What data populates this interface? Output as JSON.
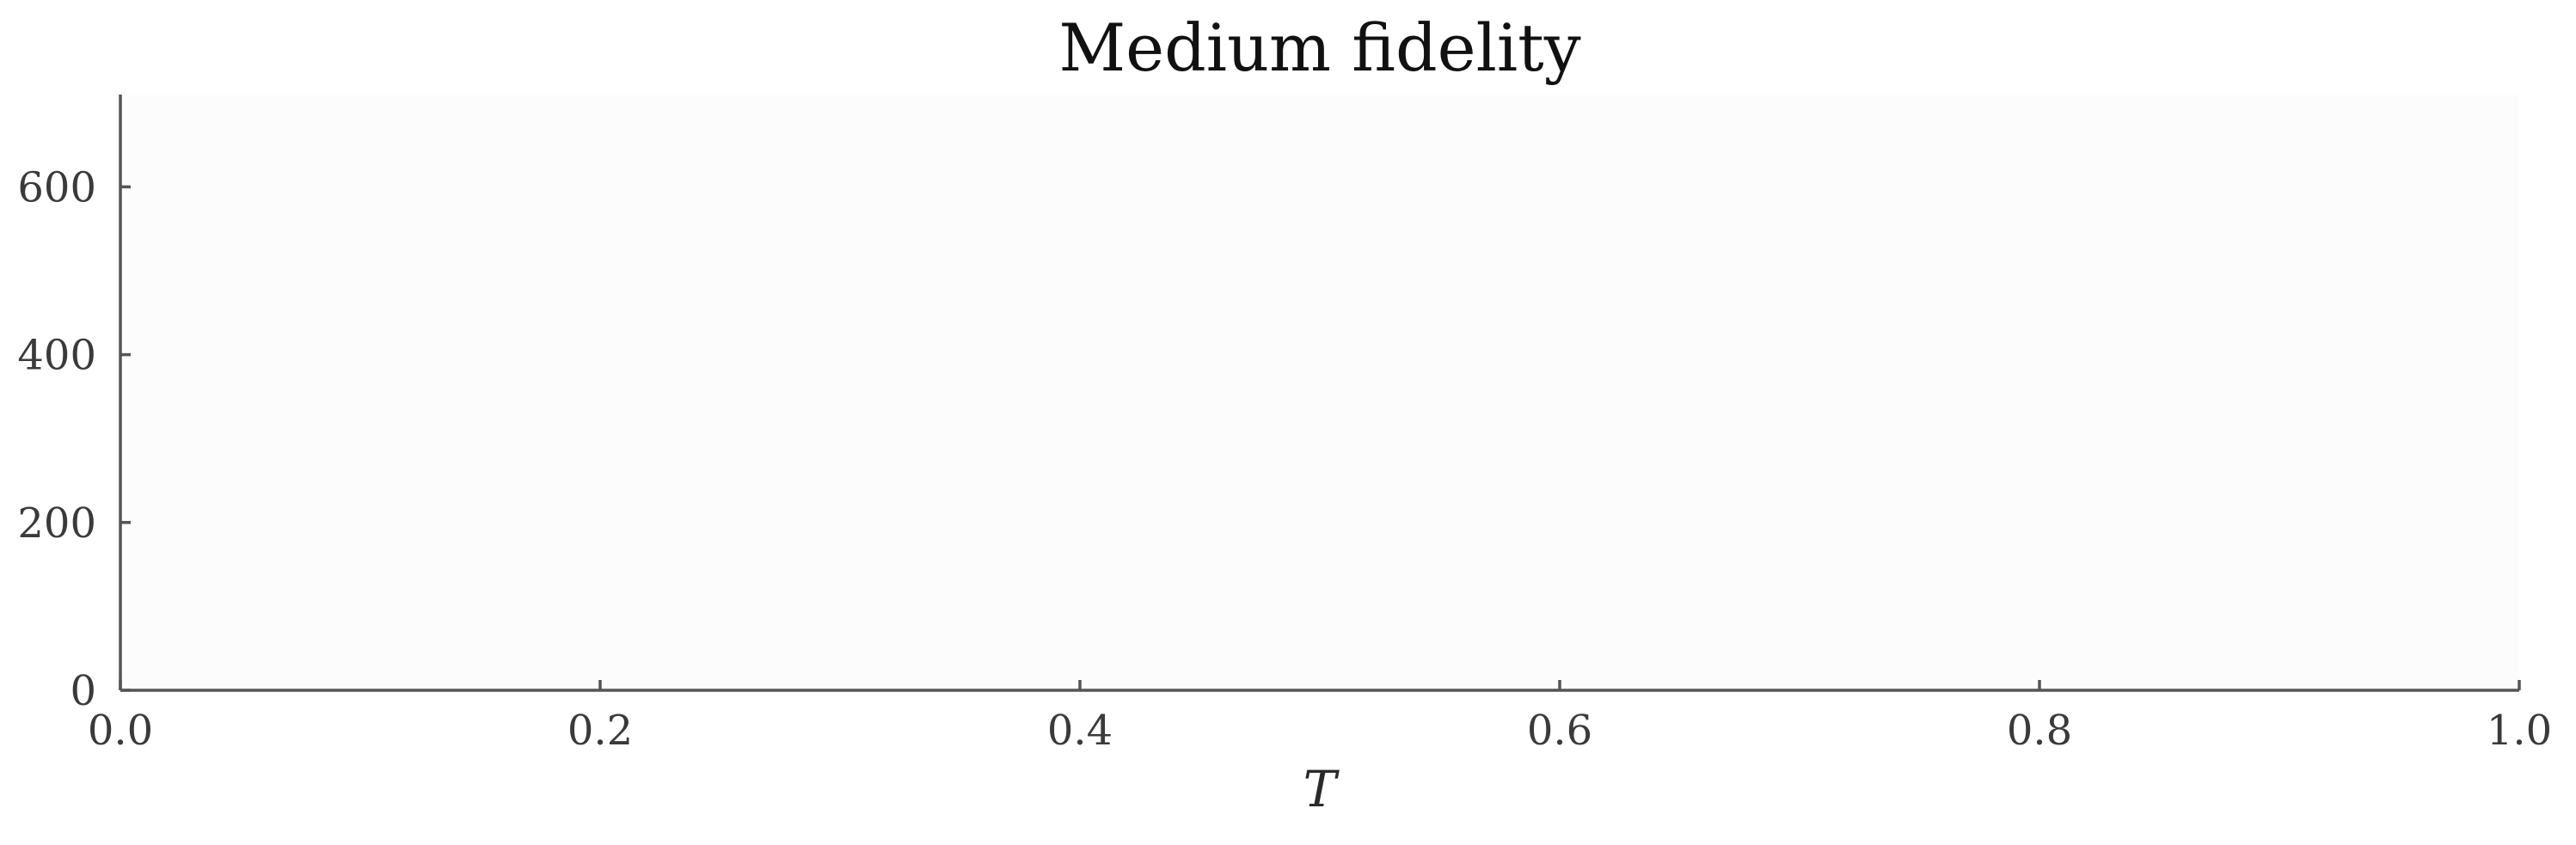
{
  "chart_data": {
    "type": "line",
    "title": "Medium fidelity",
    "xlabel": "T",
    "ylabel": "",
    "xlim": [
      0.0,
      1.0
    ],
    "ylim": [
      0,
      710
    ],
    "xticks": [
      0.0,
      0.2,
      0.4,
      0.6,
      0.8,
      1.0
    ],
    "xtick_labels": [
      "0.0",
      "0.2",
      "0.4",
      "0.6",
      "0.8",
      "1.0"
    ],
    "yticks": [
      0,
      200,
      400,
      600
    ],
    "ytick_labels": [
      "0",
      "200",
      "400",
      "600"
    ],
    "series": [],
    "grid": false,
    "legend": "none",
    "colors": {
      "plot_background": "#fcfcfc",
      "axis": "#555555",
      "text": "#3a3a3a"
    }
  }
}
